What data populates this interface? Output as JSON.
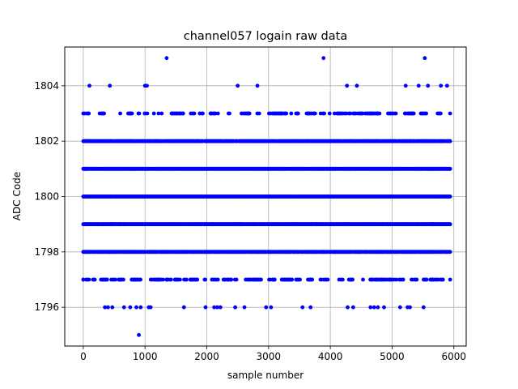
{
  "chart_data": {
    "type": "scatter",
    "title": "channel057 logain raw data",
    "xlabel": "sample number",
    "ylabel": "ADC Code",
    "xlim": [
      -300,
      6200
    ],
    "ylim": [
      1794.6,
      1805.4
    ],
    "x_ticks": [
      0,
      1000,
      2000,
      3000,
      4000,
      5000,
      6000
    ],
    "y_ticks": [
      1796,
      1798,
      1800,
      1802,
      1804
    ],
    "grid": true,
    "point_color": "#0000ff",
    "sample_range": [
      0,
      5940
    ],
    "level_density": [
      {
        "y": 1795,
        "density": "single"
      },
      {
        "y": 1796,
        "density": "sparse"
      },
      {
        "y": 1797,
        "density": "moderate"
      },
      {
        "y": 1798,
        "density": "dense"
      },
      {
        "y": 1799,
        "density": "continuous"
      },
      {
        "y": 1800,
        "density": "continuous"
      },
      {
        "y": 1801,
        "density": "continuous"
      },
      {
        "y": 1802,
        "density": "dense"
      },
      {
        "y": 1803,
        "density": "moderate"
      },
      {
        "y": 1804,
        "density": "sparse"
      },
      {
        "y": 1805,
        "density": "rare"
      }
    ],
    "points": [
      {
        "x": 900,
        "y": 1795
      },
      {
        "x": 1350,
        "y": 1805
      },
      {
        "x": 3890,
        "y": 1805
      },
      {
        "x": 5530,
        "y": 1805
      },
      {
        "x": 100,
        "y": 1804
      },
      {
        "x": 430,
        "y": 1804
      },
      {
        "x": 1000,
        "y": 1804
      },
      {
        "x": 1030,
        "y": 1804
      },
      {
        "x": 2500,
        "y": 1804
      },
      {
        "x": 2820,
        "y": 1804
      },
      {
        "x": 4270,
        "y": 1804
      },
      {
        "x": 4430,
        "y": 1804
      },
      {
        "x": 5220,
        "y": 1804
      },
      {
        "x": 5430,
        "y": 1804
      },
      {
        "x": 5580,
        "y": 1804
      },
      {
        "x": 5790,
        "y": 1804
      },
      {
        "x": 5890,
        "y": 1804
      },
      {
        "x": 350,
        "y": 1796
      },
      {
        "x": 400,
        "y": 1796
      },
      {
        "x": 470,
        "y": 1796
      },
      {
        "x": 660,
        "y": 1796
      },
      {
        "x": 760,
        "y": 1796
      },
      {
        "x": 860,
        "y": 1796
      },
      {
        "x": 930,
        "y": 1796
      },
      {
        "x": 1060,
        "y": 1796
      },
      {
        "x": 1090,
        "y": 1796
      },
      {
        "x": 1630,
        "y": 1796
      },
      {
        "x": 1980,
        "y": 1796
      },
      {
        "x": 2120,
        "y": 1796
      },
      {
        "x": 2170,
        "y": 1796
      },
      {
        "x": 2220,
        "y": 1796
      },
      {
        "x": 2460,
        "y": 1796
      },
      {
        "x": 2610,
        "y": 1796
      },
      {
        "x": 2960,
        "y": 1796
      },
      {
        "x": 3040,
        "y": 1796
      },
      {
        "x": 3550,
        "y": 1796
      },
      {
        "x": 3680,
        "y": 1796
      },
      {
        "x": 4280,
        "y": 1796
      },
      {
        "x": 4370,
        "y": 1796
      },
      {
        "x": 4650,
        "y": 1796
      },
      {
        "x": 4710,
        "y": 1796
      },
      {
        "x": 4770,
        "y": 1796
      },
      {
        "x": 4870,
        "y": 1796
      },
      {
        "x": 5130,
        "y": 1796
      },
      {
        "x": 5250,
        "y": 1796
      },
      {
        "x": 5290,
        "y": 1796
      },
      {
        "x": 5510,
        "y": 1796
      }
    ]
  }
}
